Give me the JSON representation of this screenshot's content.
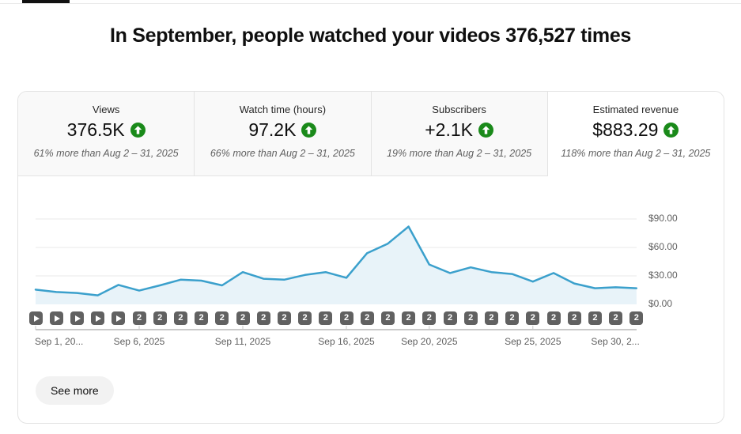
{
  "header": {
    "title": "In September, people watched your videos 376,527 times"
  },
  "metrics": {
    "trend_icon": "up-arrow-in-circle",
    "trend_color": "#1a8a1a",
    "cards": [
      {
        "label": "Views",
        "value": "376.5K",
        "comparison": "61% more than Aug 2 – 31, 2025",
        "selected": false
      },
      {
        "label": "Watch time (hours)",
        "value": "97.2K",
        "comparison": "66% more than Aug 2 – 31, 2025",
        "selected": false
      },
      {
        "label": "Subscribers",
        "value": "+2.1K",
        "comparison": "19% more than Aug 2 – 31, 2025",
        "selected": false
      },
      {
        "label": "Estimated revenue",
        "value": "$883.29",
        "comparison": "118% more than Aug 2 – 31, 2025",
        "selected": true
      }
    ]
  },
  "chart_data": {
    "type": "area",
    "title": "",
    "series_name": "Estimated revenue",
    "unit": "USD",
    "x": [
      "Sep 1",
      "Sep 2",
      "Sep 3",
      "Sep 4",
      "Sep 5",
      "Sep 6",
      "Sep 7",
      "Sep 8",
      "Sep 9",
      "Sep 10",
      "Sep 11",
      "Sep 12",
      "Sep 13",
      "Sep 14",
      "Sep 15",
      "Sep 16",
      "Sep 17",
      "Sep 18",
      "Sep 19",
      "Sep 20",
      "Sep 21",
      "Sep 22",
      "Sep 23",
      "Sep 24",
      "Sep 25",
      "Sep 26",
      "Sep 27",
      "Sep 28",
      "Sep 29",
      "Sep 30"
    ],
    "values": [
      15.5,
      13,
      12,
      9.5,
      20.5,
      14.5,
      20,
      26,
      25,
      20,
      34,
      27,
      26,
      31,
      34,
      28,
      54,
      64,
      82,
      42,
      33,
      39,
      34,
      32,
      24,
      33,
      22,
      17,
      18,
      17
    ],
    "ylim": [
      0,
      97.5
    ],
    "grid": true,
    "legend": "none",
    "y_ticks": [
      {
        "value": 0,
        "label": "$0.00"
      },
      {
        "value": 30,
        "label": "$30.00"
      },
      {
        "value": 60,
        "label": "$60.00"
      },
      {
        "value": 90,
        "label": "$90.00"
      }
    ],
    "x_ticks": [
      {
        "day": 1,
        "label": "Sep 1, 20..."
      },
      {
        "day": 6,
        "label": "Sep 6, 2025"
      },
      {
        "day": 11,
        "label": "Sep 11, 2025"
      },
      {
        "day": 16,
        "label": "Sep 16, 2025"
      },
      {
        "day": 20,
        "label": "Sep 20, 2025"
      },
      {
        "day": 25,
        "label": "Sep 25, 2025"
      },
      {
        "day": 30,
        "label": "Sep 30, 2..."
      }
    ],
    "line_color": "#3ba0cc",
    "fill_color": "#e8f3f9",
    "video_markers": [
      "play",
      "play",
      "play",
      "play",
      "play",
      "2",
      "2",
      "2",
      "2",
      "2",
      "2",
      "2",
      "2",
      "2",
      "2",
      "2",
      "2",
      "2",
      "2",
      "2",
      "2",
      "2",
      "2",
      "2",
      "2",
      "2",
      "2",
      "2",
      "2",
      "2"
    ]
  },
  "footer": {
    "see_more_label": "See more"
  }
}
